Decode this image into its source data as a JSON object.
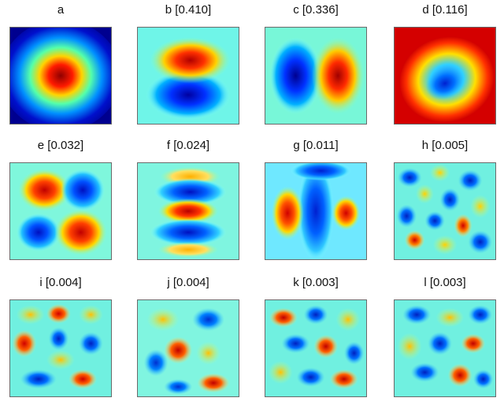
{
  "panels": [
    {
      "id": "a",
      "title": "a",
      "kind": "gaussian-blob"
    },
    {
      "id": "b",
      "title": "b [0.410]",
      "kind": "horizontal-dipole"
    },
    {
      "id": "c",
      "title": "c [0.336]",
      "kind": "vertical-dipole"
    },
    {
      "id": "d",
      "title": "d [0.116]",
      "kind": "ring"
    },
    {
      "id": "e",
      "title": "e [0.032]",
      "kind": "quadrupole"
    },
    {
      "id": "f",
      "title": "f [0.024]",
      "kind": "horizontal-tripole"
    },
    {
      "id": "g",
      "title": "g [0.011]",
      "kind": "vertical-tripole"
    },
    {
      "id": "h",
      "title": "h [0.005]",
      "kind": "noise-pattern"
    },
    {
      "id": "i",
      "title": "i [0.004]",
      "kind": "noise-pattern"
    },
    {
      "id": "j",
      "title": "j [0.004]",
      "kind": "noise-pattern"
    },
    {
      "id": "k",
      "title": "k [0.003]",
      "kind": "noise-pattern"
    },
    {
      "id": "l",
      "title": "l [0.003]",
      "kind": "noise-pattern"
    }
  ],
  "colormap": {
    "name": "jet",
    "low": "#00008f",
    "mid": "#7fffff",
    "high": "#7f0000"
  }
}
